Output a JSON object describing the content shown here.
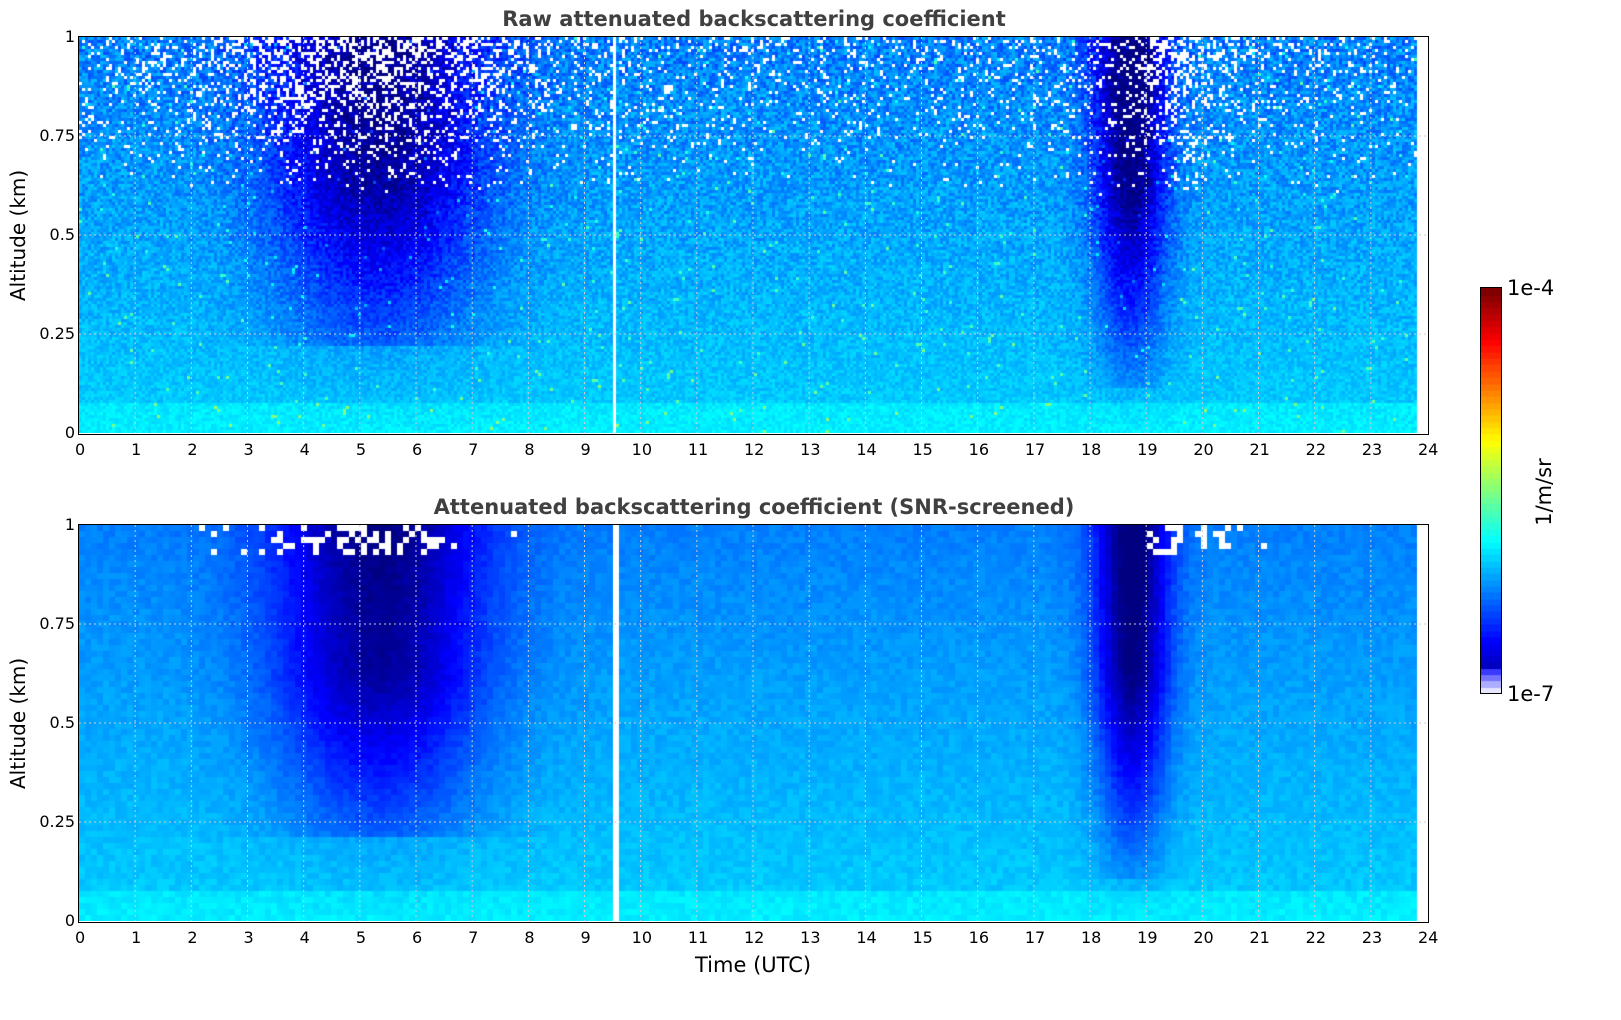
{
  "panels": [
    {
      "title": "Raw attenuated backscattering coefficient",
      "ylabel": "Altitude (km)"
    },
    {
      "title": "Attenuated backscattering coefficient (SNR-screened)",
      "ylabel": "Altitude (km)"
    }
  ],
  "xlabel": "Time (UTC)",
  "colorbar": {
    "max_label": "1e-4",
    "min_label": "1e-7",
    "unit_label": "1/m/sr"
  },
  "chart_data": [
    {
      "type": "heatmap",
      "title": "Raw attenuated backscattering coefficient",
      "xlabel": "",
      "ylabel": "Altitude (km)",
      "xlim": [
        0,
        24
      ],
      "ylim": [
        0,
        1
      ],
      "xticks": [
        "0",
        "1",
        "2",
        "3",
        "4",
        "5",
        "6",
        "7",
        "8",
        "9",
        "10",
        "11",
        "12",
        "13",
        "14",
        "15",
        "16",
        "17",
        "18",
        "19",
        "20",
        "21",
        "22",
        "23",
        "24"
      ],
      "yticks": [
        "0",
        "0.25",
        "0.5",
        "0.75",
        "1"
      ],
      "color_scale": "jet, logarithmic",
      "clim": [
        1e-07,
        0.0001
      ],
      "data_end_time": 23.8,
      "gap_time": 9.5,
      "grid": true
    },
    {
      "type": "heatmap",
      "title": "Attenuated backscattering coefficient (SNR-screened)",
      "xlabel": "Time (UTC)",
      "ylabel": "Altitude (km)",
      "xlim": [
        0,
        24
      ],
      "ylim": [
        0,
        1
      ],
      "xticks": [
        "0",
        "1",
        "2",
        "3",
        "4",
        "5",
        "6",
        "7",
        "8",
        "9",
        "10",
        "11",
        "12",
        "13",
        "14",
        "15",
        "16",
        "17",
        "18",
        "19",
        "20",
        "21",
        "22",
        "23",
        "24"
      ],
      "yticks": [
        "0",
        "0.25",
        "0.5",
        "0.75",
        "1"
      ],
      "color_scale": "jet, logarithmic",
      "clim": [
        1e-07,
        0.0001
      ],
      "data_end_time": 23.8,
      "gap_time": 9.5,
      "grid": true
    }
  ],
  "colors": {
    "frame": "#000000",
    "title": "#404040",
    "grid": "#cccccc"
  }
}
